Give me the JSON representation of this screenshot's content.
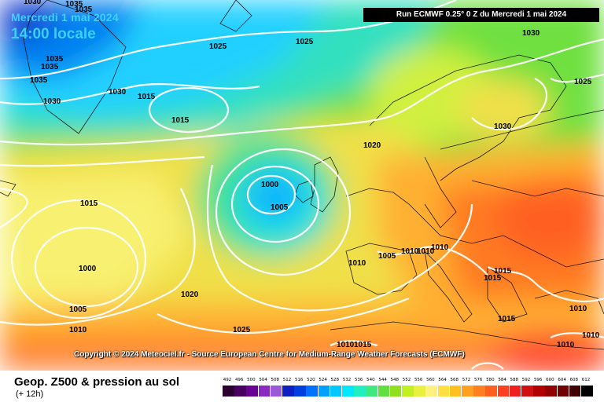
{
  "run_title": "Run ECMWF 0.25° 0 Z du Mercredi 1 mai 2024",
  "date_line": "Mercredi 1 mai 2024",
  "time_line": "14:00 locale",
  "copyright": "Copyright © 2024 Meteociel.fr - Source European Centre for Medium-Range Weather Forecasts (ECMWF)",
  "legend_title": "Geop. Z500 & pression au sol",
  "legend_subtitle": "(+ 12h)",
  "isobar_labels": [
    "1035",
    "1035",
    "1035",
    "1035",
    "1035",
    "1030",
    "1030",
    "1025",
    "1025",
    "1030",
    "1015",
    "1015",
    "1030",
    "1025",
    "1020",
    "1030",
    "1000",
    "1005",
    "1015",
    "1000",
    "1010",
    "1005",
    "1010",
    "1010",
    "1010",
    "1015",
    "1015",
    "1020",
    "1005",
    "1010",
    "1025",
    "1010",
    "1015",
    "1015",
    "1010",
    "1010",
    "1010"
  ],
  "scale": {
    "values": [
      "492",
      "496",
      "500",
      "504",
      "508",
      "512",
      "516",
      "520",
      "524",
      "528",
      "532",
      "536",
      "540",
      "544",
      "548",
      "552",
      "556",
      "560",
      "564",
      "568",
      "572",
      "576",
      "580",
      "584",
      "588",
      "592",
      "596",
      "600",
      "604",
      "608",
      "612"
    ],
    "colors": [
      "#2b0030",
      "#4a0060",
      "#6b0095",
      "#8a2ac0",
      "#9a5ad8",
      "#1020c0",
      "#0040e0",
      "#0070ff",
      "#00a0ff",
      "#00c8ff",
      "#00e8ff",
      "#20f0c0",
      "#40e880",
      "#60e040",
      "#90e020",
      "#c0f020",
      "#e8f040",
      "#fff080",
      "#ffe040",
      "#ffc020",
      "#ffa020",
      "#ff8020",
      "#ff6020",
      "#ff4020",
      "#f02020",
      "#d01010",
      "#b00000",
      "#900000",
      "#700000",
      "#400000",
      "#000000"
    ]
  }
}
